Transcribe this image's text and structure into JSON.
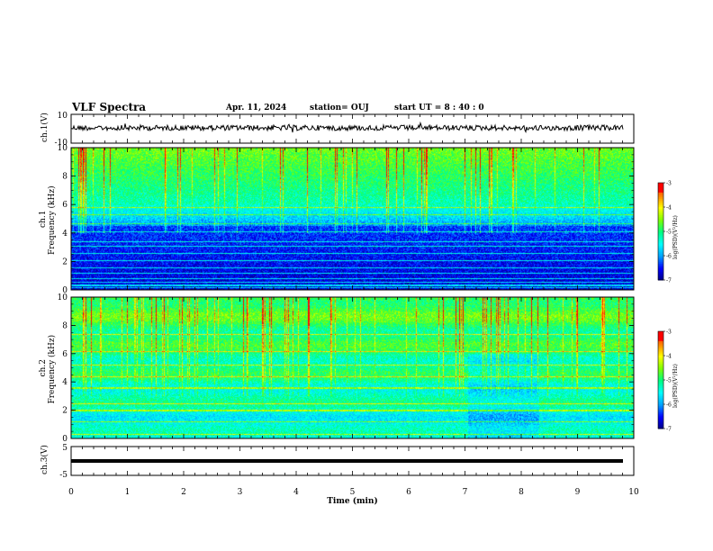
{
  "header": {
    "title": "VLF Spectra",
    "date": "Apr. 11, 2024",
    "station": "station= OUJ",
    "start": "start  UT  =   8  : 40 : 0"
  },
  "chart_data": [
    {
      "type": "line",
      "name": "ch1-waveform",
      "ylabel": "ch.1(V)",
      "ylim": [
        -10,
        10
      ],
      "yticks": [
        "10",
        "-10"
      ],
      "xlim": [
        0,
        10
      ],
      "grid": false
    },
    {
      "type": "heatmap",
      "name": "ch1-spectrogram",
      "ylabel": "ch.1\nFrequency (kHz)",
      "ylim": [
        0,
        10
      ],
      "yticks": [
        "0",
        "2",
        "4",
        "6",
        "8",
        "10"
      ],
      "xlim": [
        0,
        10
      ],
      "colorbar": {
        "label": "log(PSD)(V²/Hz)",
        "range": [
          -7,
          -3
        ],
        "ticks": [
          "-3",
          "-4",
          "-5",
          "-6",
          "-7"
        ]
      }
    },
    {
      "type": "heatmap",
      "name": "ch2-spectrogram",
      "ylabel": "ch.2\nFrequency (kHz)",
      "ylim": [
        0,
        10
      ],
      "yticks": [
        "0",
        "2",
        "4",
        "6",
        "8",
        "10"
      ],
      "xlim": [
        0,
        10
      ],
      "colorbar": {
        "label": "log(PSD)(V²/Hz)",
        "range": [
          -7,
          -3
        ],
        "ticks": [
          "-3",
          "-4",
          "-5",
          "-6",
          "-7"
        ]
      }
    },
    {
      "type": "line",
      "name": "ch3-waveform",
      "ylabel": "ch.3(V)",
      "ylim": [
        -5,
        5
      ],
      "yticks": [
        "5",
        "-5"
      ],
      "xlim": [
        0,
        10
      ],
      "grid": false
    }
  ],
  "xaxis": {
    "label": "Time  (min)",
    "ticks": [
      "0",
      "1",
      "2",
      "3",
      "4",
      "5",
      "6",
      "7",
      "8",
      "9",
      "10"
    ]
  },
  "colors": {
    "colormap": [
      "#000080",
      "#0000ff",
      "#00a0ff",
      "#00ffff",
      "#00ff80",
      "#80ff00",
      "#ffff00",
      "#ff8000",
      "#ff0000",
      "#ffffff"
    ],
    "background": "#ffffff",
    "trace": "#000000"
  }
}
